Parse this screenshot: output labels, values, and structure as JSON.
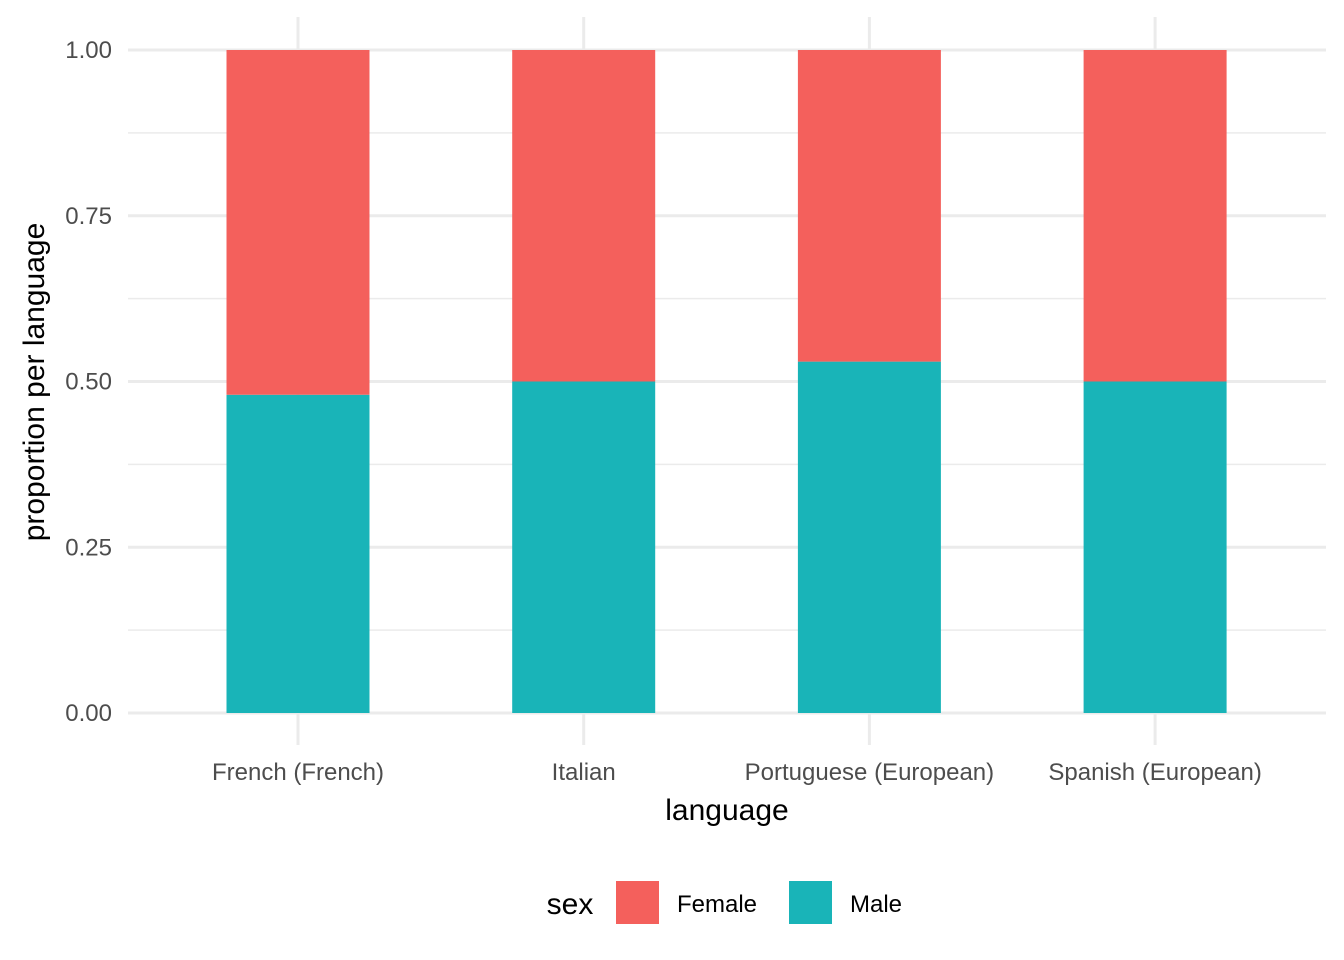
{
  "chart_data": {
    "type": "bar",
    "stacked": true,
    "categories": [
      "French (French)",
      "Italian",
      "Portuguese (European)",
      "Spanish (European)"
    ],
    "series": [
      {
        "name": "Male",
        "color": "#19B4B8",
        "values": [
          0.48,
          0.5,
          0.53,
          0.5
        ]
      },
      {
        "name": "Female",
        "color": "#F4605C",
        "values": [
          0.52,
          0.5,
          0.47,
          0.5
        ]
      }
    ],
    "xlabel": "language",
    "ylabel": "proportion per language",
    "ylim": [
      0,
      1
    ],
    "yticks": [
      "0.00",
      "0.25",
      "0.50",
      "0.75",
      "1.00"
    ],
    "grid": true,
    "legend": {
      "title": "sex",
      "position": "bottom",
      "items": [
        {
          "label": "Female",
          "color": "#F4605C"
        },
        {
          "label": "Male",
          "color": "#19B4B8"
        }
      ]
    }
  }
}
